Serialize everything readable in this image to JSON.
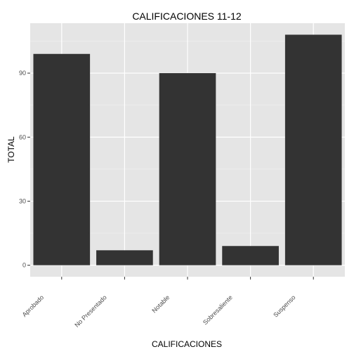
{
  "chart_data": {
    "type": "bar",
    "title": "CALIFICACIONES 11-12",
    "xlabel": "CALIFICACIONES",
    "ylabel": "TOTAL",
    "categories": [
      "Aprobado",
      "No Presentado",
      "Notable",
      "Sobresaliente",
      "Suspenso"
    ],
    "values": [
      99,
      7,
      90,
      9,
      108
    ],
    "ylim": [
      -5.4,
      113.4
    ],
    "yticks": [
      0,
      30,
      60,
      90
    ],
    "grid": true,
    "legend": "none",
    "bar_color": "#333333",
    "panel_color": "#e5e5e5"
  }
}
